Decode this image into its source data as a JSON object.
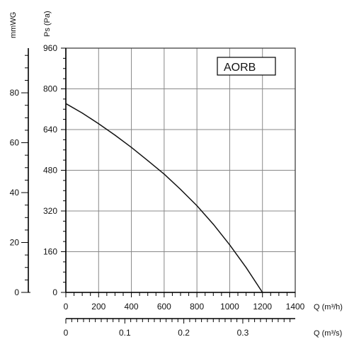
{
  "chart_data": {
    "type": "line",
    "legend_label": "AORB",
    "legend_placement": "top-right",
    "grid": true,
    "pressure_axis": {
      "label": "Ps (Pa)",
      "range": [
        0,
        960
      ],
      "tick_values": [
        0,
        160,
        320,
        480,
        640,
        800,
        960
      ],
      "tick_labels": [
        "0",
        "160",
        "320",
        "480",
        "640",
        "800",
        "960"
      ]
    },
    "mmwg_axis": {
      "label": "mmWG",
      "range": [
        0,
        97.9
      ],
      "tick_values": [
        0,
        20,
        40,
        60,
        80
      ],
      "tick_labels": [
        "0",
        "20",
        "40",
        "60",
        "80"
      ]
    },
    "flow_axis_m3h": {
      "label": "Q (m³/h)",
      "range": [
        0,
        1400
      ],
      "tick_values": [
        0,
        200,
        400,
        600,
        800,
        1000,
        1200,
        1400
      ],
      "tick_labels": [
        "0",
        "200",
        "400",
        "600",
        "800",
        "1000",
        "1200",
        "1400"
      ]
    },
    "flow_axis_m3s": {
      "label": "Q (m³/s)",
      "range": [
        0,
        0.3889
      ],
      "tick_values": [
        0,
        0.1,
        0.2,
        0.3
      ],
      "tick_labels": [
        "0",
        "0.1",
        "0.2",
        "0.3"
      ]
    },
    "series": [
      {
        "x": [
          0,
          100,
          200,
          300,
          400,
          500,
          600,
          700,
          800,
          900,
          1000,
          1100,
          1200
        ],
        "y": [
          742,
          705,
          663,
          618,
          570,
          518,
          465,
          405,
          341,
          268,
          187,
          98,
          0
        ]
      }
    ]
  }
}
